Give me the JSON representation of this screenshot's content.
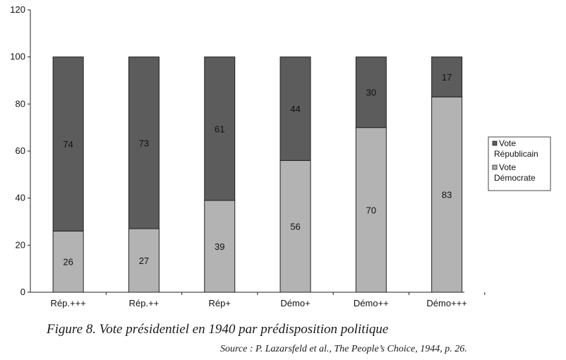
{
  "chart_data": {
    "type": "bar",
    "stacked": true,
    "categories": [
      "Rép.+++",
      "Rép.++",
      "Rép+",
      "Démo+",
      "Démo++",
      "Démo+++"
    ],
    "series": [
      {
        "name": "Vote Démocrate",
        "color": "#b3b3b3",
        "values": [
          26,
          27,
          39,
          56,
          70,
          83
        ]
      },
      {
        "name": "Vote Républicain",
        "color": "#5c5c5c",
        "values": [
          74,
          73,
          61,
          44,
          30,
          17
        ]
      }
    ],
    "ylim": [
      0,
      120
    ],
    "yticks": [
      "0",
      "20",
      "40",
      "60",
      "80",
      "100",
      "120"
    ],
    "grid": false,
    "legend": {
      "position": "right",
      "entries": [
        {
          "lines": [
            "Vote",
            "Républicain"
          ],
          "color": "#5c5c5c"
        },
        {
          "lines": [
            "Vote",
            "Démocrate"
          ],
          "color": "#b3b3b3"
        }
      ]
    }
  },
  "caption": "Figure 8. Vote présidentiel en 1940 par prédisposition politique",
  "source": "Source : P. Lazarsfeld et al., The People’s Choice, 1944, p. 26."
}
